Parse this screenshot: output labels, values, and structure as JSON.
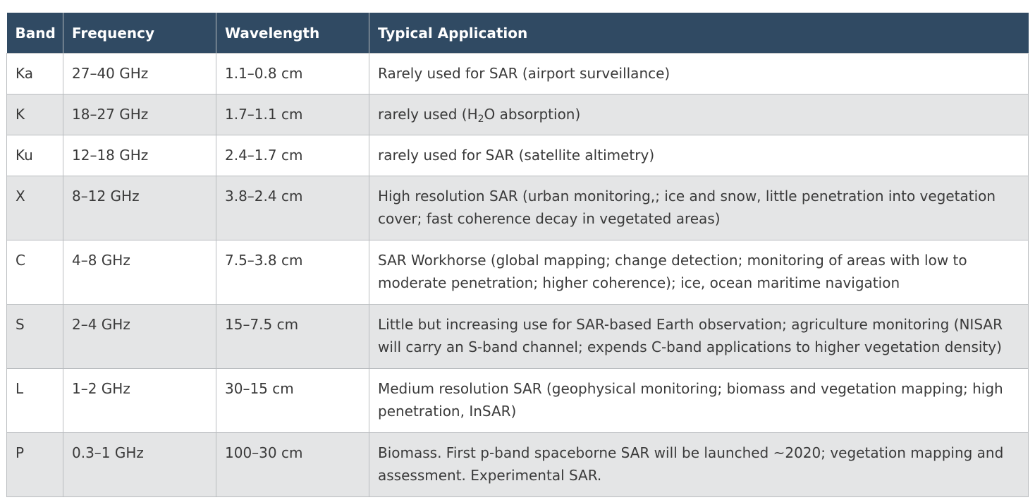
{
  "table": {
    "headers": [
      "Band",
      "Frequency",
      "Wavelength",
      "Typical Application"
    ],
    "rows": [
      {
        "band": "Ka",
        "frequency": "27–40 GHz",
        "wavelength": "1.1–0.8 cm",
        "application": "Rarely used for SAR (airport surveillance)"
      },
      {
        "band": "K",
        "frequency": "18–27 GHz",
        "wavelength": "1.7–1.1 cm",
        "application_pre": "rarely used (H",
        "application_sub": "2",
        "application_post": "O absorption)"
      },
      {
        "band": "Ku",
        "frequency": "12–18 GHz",
        "wavelength": "2.4–1.7 cm",
        "application": "rarely used for SAR (satellite altimetry)"
      },
      {
        "band": "X",
        "frequency": "8–12 GHz",
        "wavelength": "3.8–2.4 cm",
        "application": "High resolution SAR (urban monitoring,; ice and snow, little penetration into vegetation cover; fast coherence decay in vegetated areas)"
      },
      {
        "band": "C",
        "frequency": "4–8 GHz",
        "wavelength": "7.5–3.8 cm",
        "application": "SAR Workhorse (global mapping; change detection; monitoring of areas with low to moderate penetration; higher coherence); ice, ocean maritime navigation"
      },
      {
        "band": "S",
        "frequency": "2–4 GHz",
        "wavelength": "15–7.5 cm",
        "application": "Little but increasing use for SAR-based Earth observation; agriculture monitoring (NISAR will carry an S-band channel; expends C-band applications to higher vegetation density)"
      },
      {
        "band": "L",
        "frequency": "1–2 GHz",
        "wavelength": "30–15 cm",
        "application": "Medium resolution SAR (geophysical monitoring; biomass and vegetation mapping; high penetration, InSAR)"
      },
      {
        "band": "P",
        "frequency": "0.3–1 GHz",
        "wavelength": "100–30 cm",
        "application": "Biomass. First p-band spaceborne SAR will be launched ~2020; vegetation mapping and assessment. Experimental SAR."
      }
    ]
  },
  "colors": {
    "header_bg": "#304a63",
    "header_text": "#ffffff",
    "row_alt_bg": "#e4e5e6",
    "border": "#b9bcbf",
    "body_text": "#3a3a3a"
  }
}
